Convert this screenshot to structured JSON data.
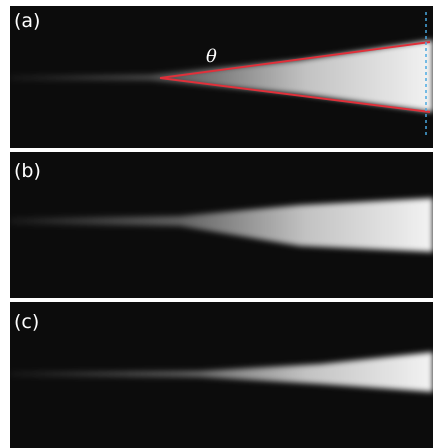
{
  "panels": [
    {
      "label": "(a)",
      "angle_label": "θ"
    },
    {
      "label": "(b)"
    },
    {
      "label": "(c)"
    }
  ]
}
